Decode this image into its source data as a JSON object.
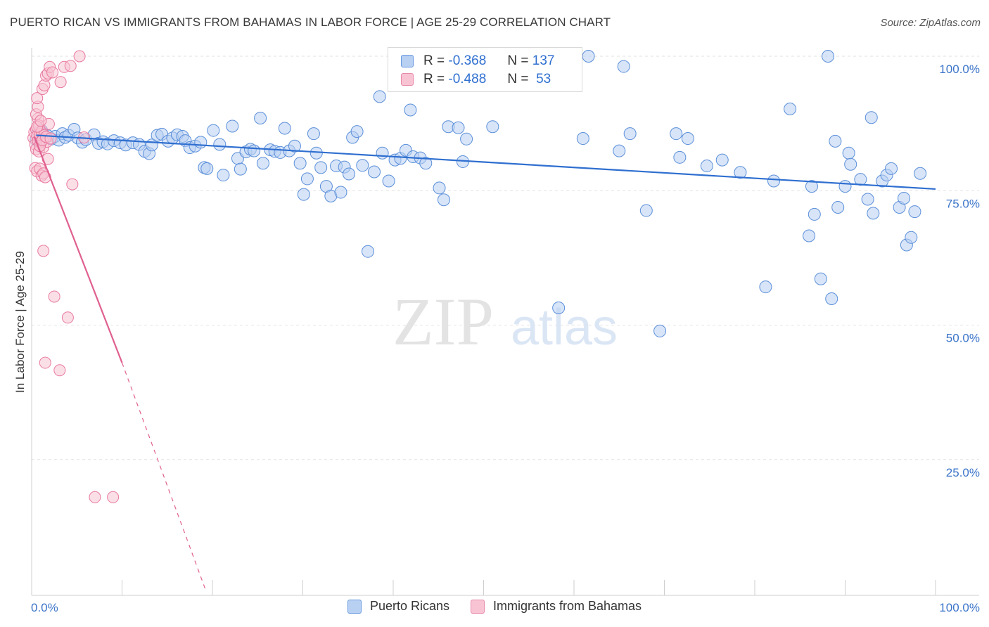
{
  "title": "PUERTO RICAN VS IMMIGRANTS FROM BAHAMAS IN LABOR FORCE | AGE 25-29 CORRELATION CHART",
  "source": "Source: ZipAtlas.com",
  "watermark": {
    "zip": "ZIP",
    "atlas": "atlas"
  },
  "legend": {
    "rows": [
      {
        "r_label": "R =",
        "r_value": "-0.368",
        "n_label": "N =",
        "n_value": "137"
      },
      {
        "r_label": "R =",
        "r_value": "-0.488",
        "n_label": "N =",
        "n_value": "53"
      }
    ]
  },
  "bottom_legend": {
    "series1": "Puerto Ricans",
    "series2": "Immigrants from Bahamas"
  },
  "colors": {
    "blue": "#5b8fd9",
    "blue_fill": "#b8d0f2",
    "pink": "#e8799f",
    "pink_fill": "#f8c4d4",
    "blue_line": "#2f6fd0",
    "pink_line": "#e0608f"
  },
  "chart_data": {
    "type": "scatter",
    "title": "PUERTO RICAN VS IMMIGRANTS FROM BAHAMAS IN LABOR FORCE | AGE 25-29 CORRELATION CHART",
    "xlabel": "",
    "ylabel": "In Labor Force | Age 25-29",
    "xlim": [
      0,
      100
    ],
    "ylim": [
      0,
      100
    ],
    "x_tick_labels": [
      "0.0%",
      "100.0%"
    ],
    "y_tick_labels": [
      {
        "value": 100,
        "label": "100.0%"
      },
      {
        "value": 75,
        "label": "75.0%"
      },
      {
        "value": 50,
        "label": "50.0%"
      },
      {
        "value": 25,
        "label": "25.0%"
      }
    ],
    "grid": true,
    "legend_position": "top-center",
    "series": [
      {
        "name": "Puerto Ricans",
        "r": -0.368,
        "n": 137,
        "trend": {
          "x": [
            0.5,
            100
          ],
          "y": [
            85.3,
            75.3
          ]
        },
        "points": [
          [
            0.5,
            84.5
          ],
          [
            0.7,
            85.8
          ],
          [
            0.9,
            84.0
          ],
          [
            1.1,
            86.2
          ],
          [
            1.3,
            85.5
          ],
          [
            1.5,
            84.8
          ],
          [
            1.8,
            85.2
          ],
          [
            2.2,
            84.6
          ],
          [
            2.6,
            85.1
          ],
          [
            3.0,
            84.4
          ],
          [
            3.4,
            85.6
          ],
          [
            3.7,
            84.9
          ],
          [
            4.1,
            85.3
          ],
          [
            4.7,
            86.4
          ],
          [
            5.1,
            84.8
          ],
          [
            5.6,
            84.0
          ],
          [
            6.0,
            84.5
          ],
          [
            6.9,
            85.4
          ],
          [
            7.4,
            83.8
          ],
          [
            7.9,
            84.1
          ],
          [
            8.4,
            83.7
          ],
          [
            9.1,
            84.3
          ],
          [
            9.8,
            83.9
          ],
          [
            10.4,
            83.5
          ],
          [
            11.2,
            83.9
          ],
          [
            11.9,
            83.6
          ],
          [
            12.5,
            82.3
          ],
          [
            13.0,
            81.9
          ],
          [
            13.3,
            83.5
          ],
          [
            13.9,
            85.3
          ],
          [
            14.4,
            85.5
          ],
          [
            15.1,
            84.2
          ],
          [
            15.6,
            84.8
          ],
          [
            16.1,
            85.4
          ],
          [
            16.7,
            85.1
          ],
          [
            17.0,
            84.3
          ],
          [
            17.5,
            83.0
          ],
          [
            18.1,
            83.3
          ],
          [
            18.7,
            84.0
          ],
          [
            19.1,
            79.3
          ],
          [
            19.4,
            79.1
          ],
          [
            20.1,
            86.2
          ],
          [
            20.8,
            83.6
          ],
          [
            21.2,
            77.9
          ],
          [
            22.2,
            87.0
          ],
          [
            22.8,
            81.0
          ],
          [
            23.1,
            79.0
          ],
          [
            23.7,
            82.2
          ],
          [
            24.2,
            82.7
          ],
          [
            24.6,
            82.4
          ],
          [
            25.3,
            88.5
          ],
          [
            25.6,
            80.1
          ],
          [
            26.4,
            82.6
          ],
          [
            26.9,
            82.3
          ],
          [
            27.5,
            82.1
          ],
          [
            28.0,
            86.6
          ],
          [
            28.5,
            82.4
          ],
          [
            29.1,
            83.3
          ],
          [
            29.7,
            80.1
          ],
          [
            30.1,
            74.3
          ],
          [
            30.5,
            77.2
          ],
          [
            31.2,
            85.6
          ],
          [
            31.5,
            82.0
          ],
          [
            32.0,
            79.3
          ],
          [
            32.6,
            75.8
          ],
          [
            33.1,
            74.0
          ],
          [
            33.7,
            79.6
          ],
          [
            34.2,
            74.7
          ],
          [
            34.6,
            79.4
          ],
          [
            35.1,
            78.1
          ],
          [
            35.5,
            84.9
          ],
          [
            36.0,
            86.0
          ],
          [
            36.6,
            79.7
          ],
          [
            37.2,
            63.7
          ],
          [
            37.9,
            78.5
          ],
          [
            38.5,
            92.5
          ],
          [
            38.8,
            82.0
          ],
          [
            39.5,
            76.8
          ],
          [
            40.2,
            80.7
          ],
          [
            40.8,
            81.0
          ],
          [
            41.4,
            82.5
          ],
          [
            41.9,
            90.0
          ],
          [
            42.2,
            81.3
          ],
          [
            43.0,
            81.1
          ],
          [
            43.6,
            80.1
          ],
          [
            45.1,
            75.5
          ],
          [
            45.6,
            73.3
          ],
          [
            46.1,
            86.9
          ],
          [
            47.2,
            86.7
          ],
          [
            47.7,
            80.4
          ],
          [
            48.1,
            84.6
          ],
          [
            48.4,
            100.0
          ],
          [
            49.0,
            100.0
          ],
          [
            50.3,
            100.0
          ],
          [
            51.0,
            86.9
          ],
          [
            53.4,
            100.0
          ],
          [
            58.3,
            53.2
          ],
          [
            61.0,
            84.7
          ],
          [
            61.6,
            100.0
          ],
          [
            65.0,
            82.4
          ],
          [
            65.5,
            98.1
          ],
          [
            66.2,
            85.6
          ],
          [
            68.0,
            71.3
          ],
          [
            69.5,
            48.9
          ],
          [
            71.3,
            85.6
          ],
          [
            71.7,
            81.2
          ],
          [
            72.6,
            84.7
          ],
          [
            74.7,
            79.6
          ],
          [
            76.4,
            80.7
          ],
          [
            78.4,
            78.4
          ],
          [
            81.2,
            57.1
          ],
          [
            82.1,
            76.8
          ],
          [
            83.9,
            90.2
          ],
          [
            86.0,
            66.6
          ],
          [
            86.3,
            75.8
          ],
          [
            86.6,
            70.6
          ],
          [
            87.3,
            58.6
          ],
          [
            88.1,
            100.0
          ],
          [
            88.5,
            54.9
          ],
          [
            88.9,
            84.2
          ],
          [
            89.2,
            71.9
          ],
          [
            90.0,
            75.8
          ],
          [
            90.4,
            82.0
          ],
          [
            90.6,
            79.9
          ],
          [
            91.7,
            77.1
          ],
          [
            92.5,
            73.4
          ],
          [
            92.9,
            88.6
          ],
          [
            93.1,
            70.8
          ],
          [
            94.1,
            76.8
          ],
          [
            94.6,
            77.9
          ],
          [
            95.1,
            79.1
          ],
          [
            96.0,
            71.9
          ],
          [
            96.5,
            73.6
          ],
          [
            96.8,
            64.9
          ],
          [
            97.3,
            66.3
          ],
          [
            97.7,
            71.1
          ],
          [
            98.3,
            78.2
          ]
        ]
      },
      {
        "name": "Immigrants from Bahamas",
        "r": -0.488,
        "n": 53,
        "trend": {
          "x": [
            0.3,
            10.0
          ],
          "y": [
            85.0,
            43.0
          ]
        },
        "trend_dashed": {
          "x": [
            10.0,
            19.3
          ],
          "y": [
            43.0,
            0.5
          ]
        },
        "points": [
          [
            0.2,
            84.8
          ],
          [
            0.3,
            85.9
          ],
          [
            0.4,
            83.6
          ],
          [
            0.5,
            86.4
          ],
          [
            0.5,
            82.7
          ],
          [
            0.6,
            85.2
          ],
          [
            0.7,
            84.3
          ],
          [
            0.7,
            88.4
          ],
          [
            0.8,
            87.1
          ],
          [
            0.8,
            82.3
          ],
          [
            0.9,
            85.5
          ],
          [
            1.0,
            84.0
          ],
          [
            1.1,
            86.0
          ],
          [
            1.2,
            84.6
          ],
          [
            1.3,
            83.1
          ],
          [
            0.4,
            79.2
          ],
          [
            0.6,
            78.6
          ],
          [
            0.9,
            79.1
          ],
          [
            1.1,
            77.8
          ],
          [
            1.3,
            78.2
          ],
          [
            1.5,
            77.5
          ],
          [
            1.8,
            80.9
          ],
          [
            0.5,
            89.2
          ],
          [
            0.7,
            90.6
          ],
          [
            0.6,
            92.2
          ],
          [
            1.2,
            93.9
          ],
          [
            1.4,
            94.6
          ],
          [
            1.6,
            96.4
          ],
          [
            1.8,
            96.8
          ],
          [
            2.0,
            98.0
          ],
          [
            2.3,
            97.0
          ],
          [
            3.2,
            95.2
          ],
          [
            3.6,
            98.0
          ],
          [
            4.3,
            98.2
          ],
          [
            5.3,
            100.0
          ],
          [
            5.8,
            84.9
          ],
          [
            4.5,
            76.2
          ],
          [
            1.3,
            63.8
          ],
          [
            2.5,
            55.3
          ],
          [
            4.0,
            51.4
          ],
          [
            1.5,
            43.0
          ],
          [
            3.1,
            41.6
          ],
          [
            7.0,
            18.0
          ],
          [
            9.0,
            18.0
          ],
          [
            1.9,
            87.4
          ],
          [
            1.4,
            85.3
          ],
          [
            1.7,
            84.1
          ],
          [
            0.9,
            83.3
          ],
          [
            0.6,
            86.9
          ],
          [
            1.0,
            88.0
          ],
          [
            1.2,
            84.4
          ],
          [
            1.6,
            85.0
          ],
          [
            2.1,
            84.7
          ]
        ]
      }
    ]
  }
}
